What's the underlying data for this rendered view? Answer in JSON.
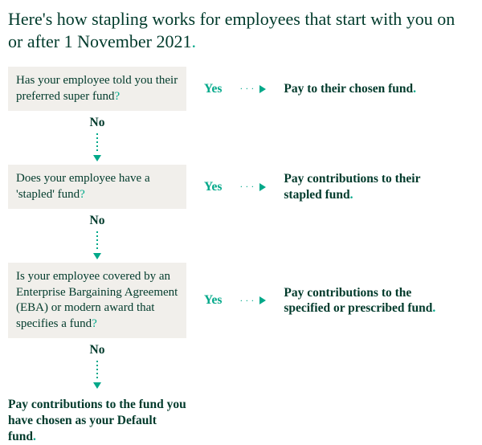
{
  "colors": {
    "text": "#003a2b",
    "accent": "#00a889",
    "box_bg": "#f1efeb",
    "page_bg": "#ffffff"
  },
  "typography": {
    "heading_fontsize": 22,
    "body_fontsize": 15,
    "bold_fontsize": 15.5,
    "font_family": "Georgia"
  },
  "heading": "Here's how stapling works for employees that start with you on or after 1 November 2021",
  "steps": [
    {
      "question": "Has your employee told you their preferred super fund",
      "yes_label": "Yes",
      "no_label": "No",
      "yes_outcome": "Pay to their chosen fund"
    },
    {
      "question": "Does your employee have a 'stapled' fund",
      "yes_label": "Yes",
      "no_label": "No",
      "yes_outcome": "Pay contributions to their stapled fund"
    },
    {
      "question": "Is your employee covered by an Enterprise Bargaining Agreement (EBA) or modern award that specifies a fund",
      "yes_label": "Yes",
      "no_label": "No",
      "yes_outcome": "Pay contributions to the specified or prescribed fund"
    }
  ],
  "final_outcome": "Pay contributions to the fund you have chosen as your Default fund",
  "flow": {
    "type": "flowchart",
    "direction": "vertical-with-branches",
    "arrow_color": "#00a889",
    "arrow_style": "dotted"
  }
}
